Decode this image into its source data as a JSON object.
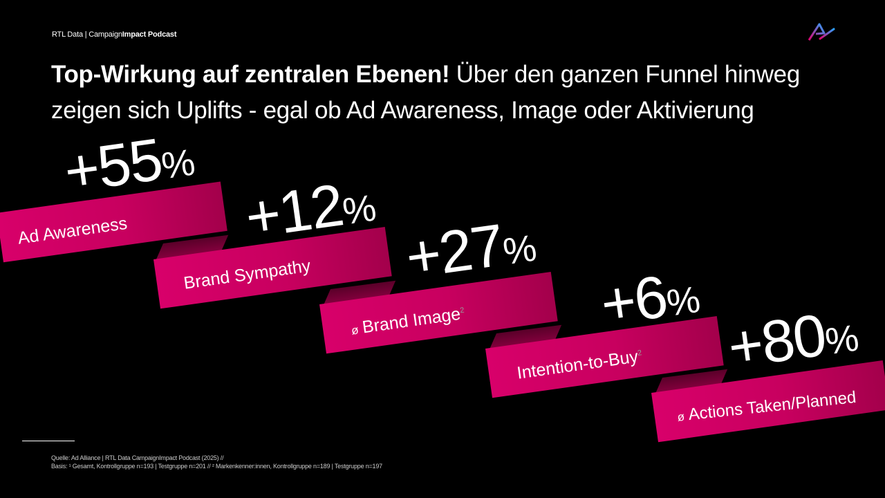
{
  "header": {
    "brand_plain": "RTL Data | Campaign",
    "brand_bold": "Impact Podcast"
  },
  "headline": {
    "bold": "Top-Wirkung auf zentralen Ebenen!",
    "regular": " Über den ganzen Funnel hinweg zeigen sich Uplifts - egal ob Ad Awareness, Image oder Aktivierung"
  },
  "metrics": [
    {
      "value": "+55",
      "unit": "%",
      "label": "Ad Awareness",
      "prefix": "",
      "footnote_mark": ""
    },
    {
      "value": "+12",
      "unit": "%",
      "label": "Brand Sympathy",
      "prefix": "",
      "footnote_mark": ""
    },
    {
      "value": "+27",
      "unit": "%",
      "label": "Brand Image",
      "prefix": "ø",
      "footnote_mark": "2"
    },
    {
      "value": "+6",
      "unit": "%",
      "label": "Intention-to-Buy",
      "prefix": "",
      "footnote_mark": "2"
    },
    {
      "value": "+80",
      "unit": "%",
      "label": "Actions Taken/Planned",
      "prefix": "ø",
      "footnote_mark": ""
    }
  ],
  "footnote": {
    "line1": "Quelle: Ad Alliance | RTL Data CampaignImpact Podcast (2025) //",
    "line2": "Basis: ¹ Gesamt, Kontrollgruppe n=193 | Testgruppe n=201 // ² Markenkenner:innen, Kontrollgruppe n=189 | Testgruppe n=197"
  },
  "colors": {
    "background": "#000000",
    "ribbon": "#d8006a",
    "ribbon_dark": "#8a0040",
    "text": "#ffffff"
  }
}
